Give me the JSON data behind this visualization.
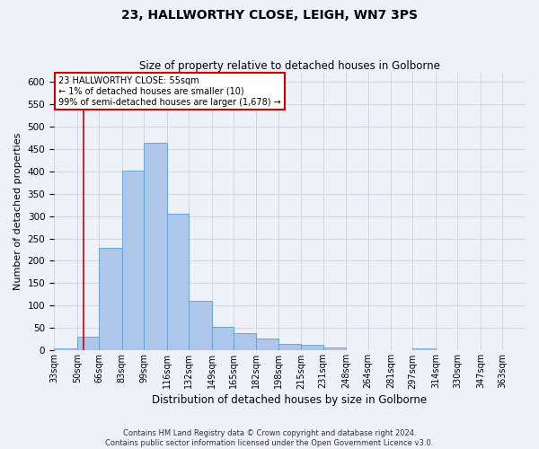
{
  "title": "23, HALLWORTHY CLOSE, LEIGH, WN7 3PS",
  "subtitle": "Size of property relative to detached houses in Golborne",
  "xlabel": "Distribution of detached houses by size in Golborne",
  "ylabel": "Number of detached properties",
  "bin_labels": [
    "33sqm",
    "50sqm",
    "66sqm",
    "83sqm",
    "99sqm",
    "116sqm",
    "132sqm",
    "149sqm",
    "165sqm",
    "182sqm",
    "198sqm",
    "215sqm",
    "231sqm",
    "248sqm",
    "264sqm",
    "281sqm",
    "297sqm",
    "314sqm",
    "330sqm",
    "347sqm",
    "363sqm"
  ],
  "bin_edges": [
    33,
    50,
    66,
    83,
    99,
    116,
    132,
    149,
    165,
    182,
    198,
    215,
    231,
    248,
    264,
    281,
    297,
    314,
    330,
    347,
    363
  ],
  "bar_heights": [
    5,
    30,
    228,
    401,
    463,
    305,
    110,
    53,
    39,
    27,
    14,
    12,
    7,
    0,
    0,
    0,
    5,
    0,
    0,
    0
  ],
  "bar_color": "#aec6e8",
  "bar_edgecolor": "#5a9fd4",
  "grid_color": "#d0d8e8",
  "background_color": "#eef2f8",
  "red_line_x": 55,
  "annotation_text": "23 HALLWORTHY CLOSE: 55sqm\n← 1% of detached houses are smaller (10)\n99% of semi-detached houses are larger (1,678) →",
  "annotation_box_color": "#ffffff",
  "annotation_border_color": "#cc0000",
  "ylim": [
    0,
    620
  ],
  "yticks": [
    0,
    50,
    100,
    150,
    200,
    250,
    300,
    350,
    400,
    450,
    500,
    550,
    600
  ],
  "footer_line1": "Contains HM Land Registry data © Crown copyright and database right 2024.",
  "footer_line2": "Contains public sector information licensed under the Open Government Licence v3.0."
}
